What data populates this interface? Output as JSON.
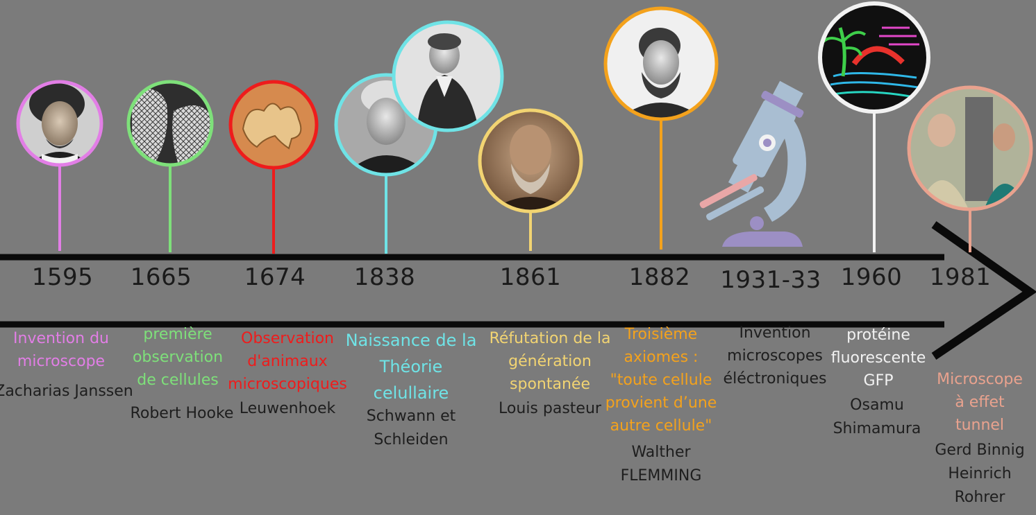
{
  "colors": {
    "background": "#7b7b7b",
    "pink": "#e27ee6",
    "green": "#7ee07a",
    "red": "#ee1c1c",
    "cyan": "#6fe3e6",
    "yellow": "#f2d472",
    "orange": "#f4a21c",
    "white": "#f2f2f2",
    "salmon": "#e9a28e"
  },
  "events": [
    {
      "year": "1595",
      "color": "#e27ee6",
      "icon": "portrait-janssen",
      "desc": [
        "Invention du",
        "microscope"
      ],
      "who": [
        "Zacharias Janssen"
      ]
    },
    {
      "year": "1665",
      "color": "#7ee07a",
      "icon": "cork-cells-image",
      "desc": [
        "première",
        "observation",
        "de cellules"
      ],
      "who": [
        "Robert Hooke"
      ]
    },
    {
      "year": "1674",
      "color": "#ee1c1c",
      "icon": "microorganism-image",
      "desc": [
        "Observation",
        "d'animaux",
        "microscopiques"
      ],
      "who": [
        "Leuwenhoek"
      ]
    },
    {
      "year": "1838",
      "color": "#6fe3e6",
      "icon": "portrait-schwann-schleiden",
      "desc": [
        "Naissance de la",
        "Théorie",
        "celullaire"
      ],
      "who": [
        "Schwann et",
        "Schleiden"
      ]
    },
    {
      "year": "1861",
      "color": "#f2d472",
      "icon": "portrait-pasteur",
      "desc": [
        "Réfutation de la",
        "génération",
        "spontanée"
      ],
      "who": [
        "Louis pasteur"
      ]
    },
    {
      "year": "1882",
      "color": "#f4a21c",
      "icon": "portrait-flemming",
      "desc": [
        "Troisième",
        "axiomes :",
        "\"toute cellule",
        "provient d’une",
        "autre cellule\""
      ],
      "who": [
        "Walther",
        "FLEMMING"
      ]
    },
    {
      "year": "1931-33",
      "color": "#1e1e1e",
      "icon": "microscope-icon",
      "desc": [
        "Invention",
        "microscopes",
        "éléctroniques"
      ],
      "who": []
    },
    {
      "year": "1960",
      "color": "#f2f2f2",
      "icon": "gfp-fluorescent-image",
      "desc": [
        "protéine",
        "fluorescente",
        "GFP"
      ],
      "who": [
        "Osamu",
        "Shimamura"
      ]
    },
    {
      "year": "1981",
      "color": "#e9a28e",
      "icon": "portrait-binnig-rohrer",
      "desc": [
        "Microscope",
        "à effet",
        "tunnel"
      ],
      "who": [
        "Gerd Binnig",
        "Heinrich",
        "Rohrer"
      ]
    }
  ]
}
